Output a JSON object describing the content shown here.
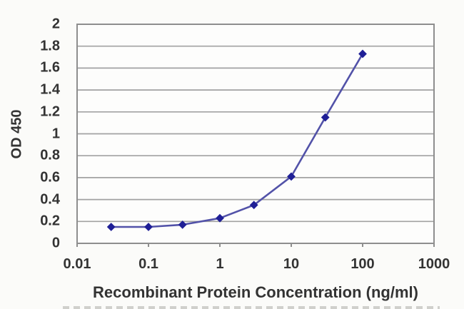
{
  "chart_data": {
    "type": "line",
    "title": "",
    "xlabel": "Recombinant Protein Concentration (ng/ml)",
    "ylabel": "OD 450",
    "x_scale": "log",
    "x": [
      0.03,
      0.1,
      0.3,
      1,
      3,
      10,
      30,
      100
    ],
    "y": [
      0.15,
      0.15,
      0.17,
      0.23,
      0.35,
      0.61,
      1.15,
      1.73
    ],
    "xlim": [
      0.01,
      1000
    ],
    "ylim": [
      0,
      2
    ],
    "x_ticks": [
      "0.01",
      "0.1",
      "1",
      "10",
      "100",
      "1000"
    ],
    "x_tick_values": [
      0.01,
      0.1,
      1,
      10,
      100,
      1000
    ],
    "y_ticks": [
      "0",
      "0.2",
      "0.4",
      "0.6",
      "0.8",
      "1",
      "1.2",
      "1.4",
      "1.6",
      "1.8",
      "2"
    ],
    "y_tick_values": [
      0,
      0.2,
      0.4,
      0.6,
      0.8,
      1,
      1.2,
      1.4,
      1.6,
      1.8,
      2
    ],
    "grid": "horizontal",
    "legend": "none",
    "marker": "diamond",
    "colors": {
      "line": "#5252a8",
      "marker": "#1f1f96",
      "grid": "#a2a2a2",
      "axis": "#8e8e8e",
      "text": "#333333",
      "plot_bg": "#fdfdfc",
      "page_bg": "#fbfbf9"
    }
  }
}
